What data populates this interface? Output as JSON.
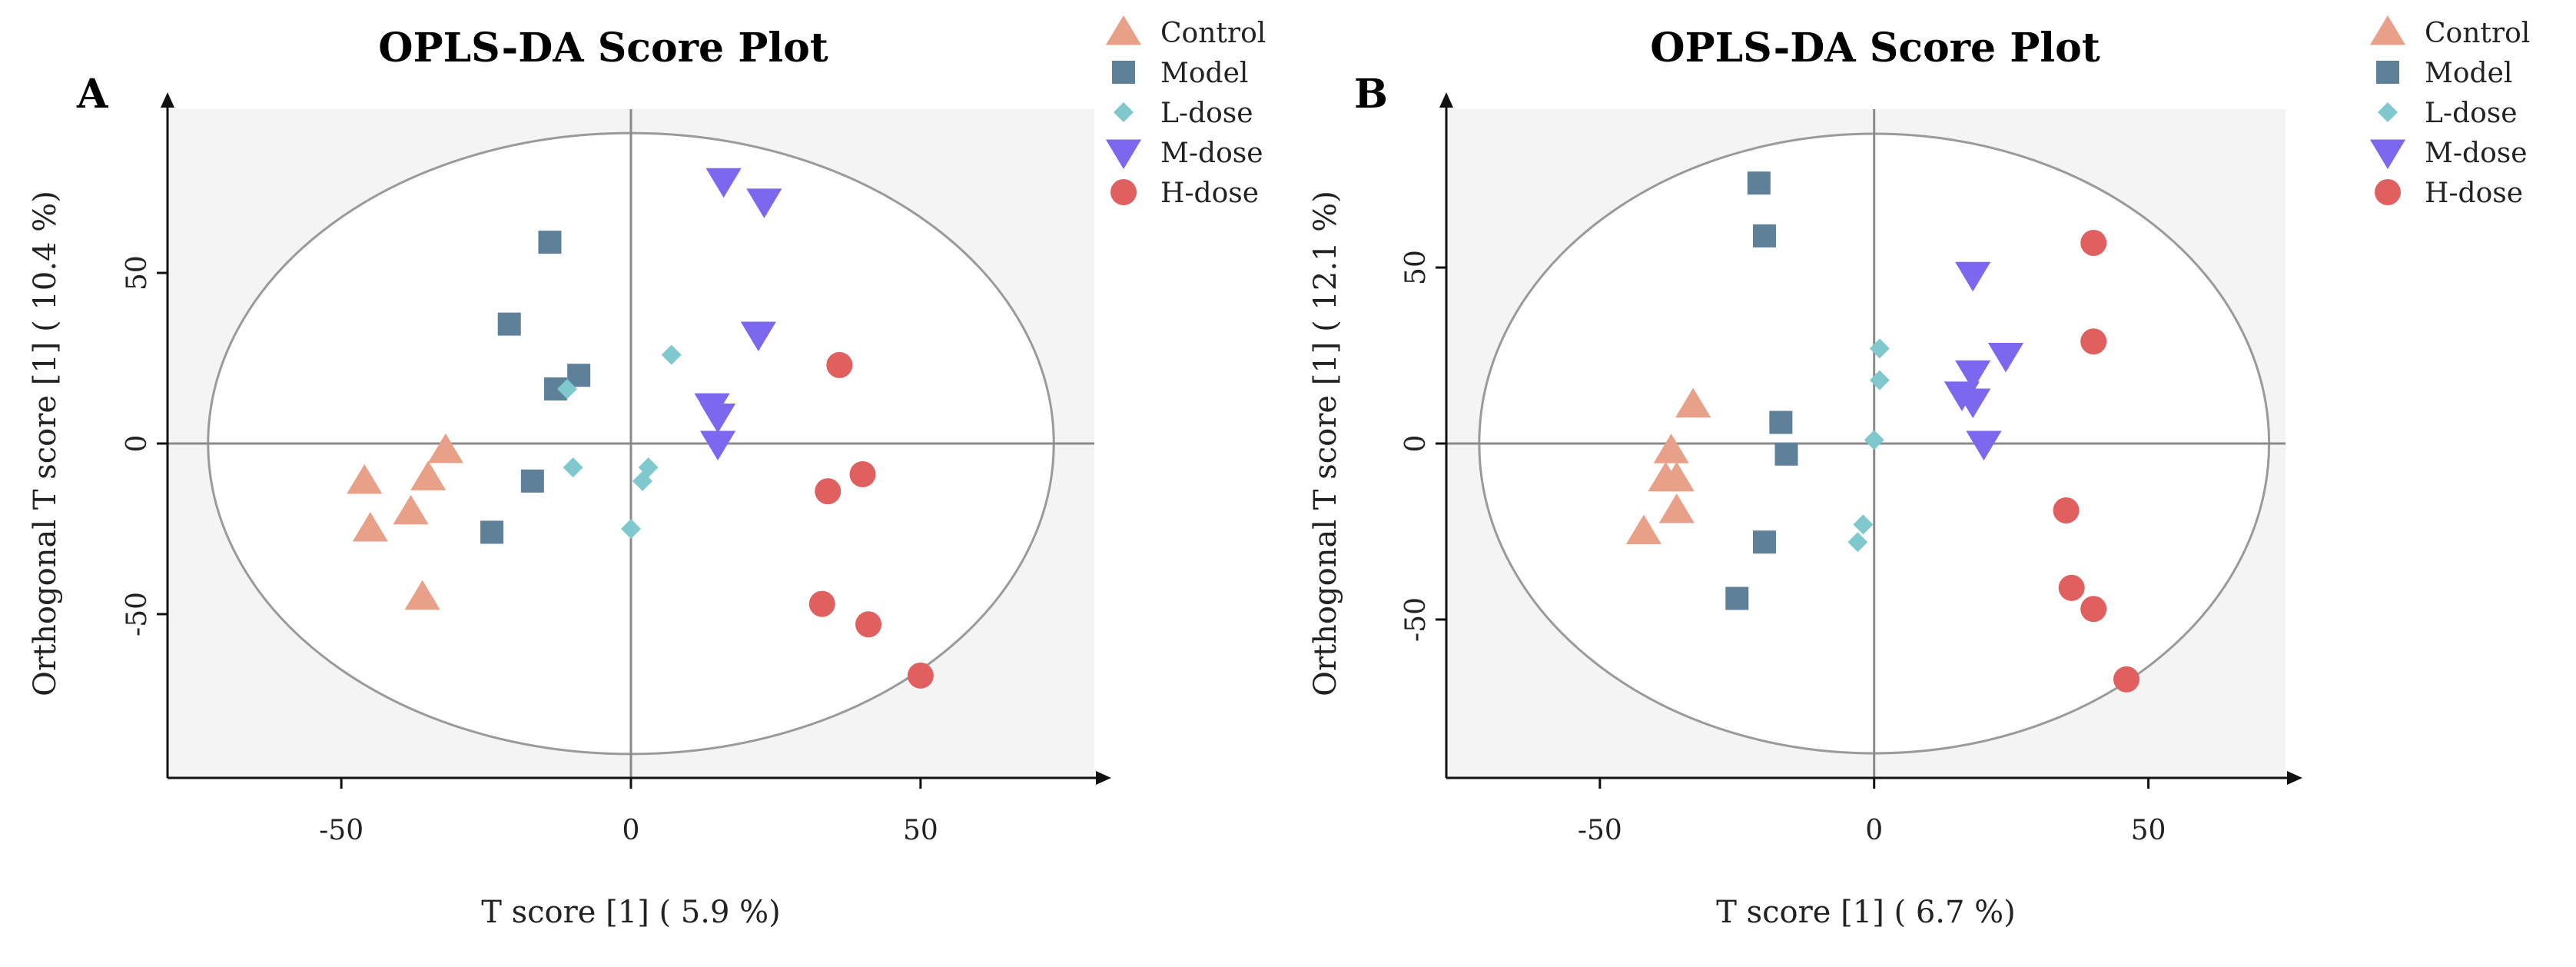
{
  "chart_data": [
    {
      "type": "scatter",
      "panel": "A",
      "title": "OPLS-DA Score Plot",
      "xlabel": "T score [1] ( 5.9 %)",
      "ylabel": "Orthogonal T score [1] ( 10.4 %)",
      "xlim": [
        -80,
        80
      ],
      "ylim": [
        -98,
        98
      ],
      "xticks": [
        -50,
        0,
        50
      ],
      "yticks": [
        -50,
        0,
        50
      ],
      "ellipse": {
        "cx": 0,
        "cy": 0,
        "rx": 73,
        "ry": 91
      },
      "legend": [
        "Control",
        "Model",
        "L-dose",
        "M-dose",
        "H-dose"
      ],
      "series": [
        {
          "name": "Control",
          "marker": "triangle-up",
          "color": "#E9A089",
          "points": [
            [
              -46,
              -11
            ],
            [
              -45,
              -25
            ],
            [
              -38,
              -20
            ],
            [
              -35,
              -10
            ],
            [
              -32,
              -2
            ],
            [
              -36,
              -45
            ]
          ]
        },
        {
          "name": "Model",
          "marker": "square",
          "color": "#5E8199",
          "points": [
            [
              -14,
              59
            ],
            [
              -21,
              35
            ],
            [
              -9,
              20
            ],
            [
              -13,
              16
            ],
            [
              -17,
              -11
            ],
            [
              -24,
              -26
            ]
          ]
        },
        {
          "name": "L-dose",
          "marker": "diamond",
          "color": "#7FC9CE",
          "points": [
            [
              7,
              26
            ],
            [
              -11,
              16
            ],
            [
              -10,
              -7
            ],
            [
              3,
              -7
            ],
            [
              2,
              -11
            ],
            [
              0,
              -25
            ]
          ]
        },
        {
          "name": "M-dose",
          "marker": "triangle-down",
          "color": "#7B68EE",
          "points": [
            [
              16,
              77
            ],
            [
              23,
              71
            ],
            [
              22,
              32
            ],
            [
              14,
              11
            ],
            [
              15,
              8
            ],
            [
              15,
              0
            ]
          ]
        },
        {
          "name": "H-dose",
          "marker": "circle",
          "color": "#E06060",
          "points": [
            [
              36,
              23
            ],
            [
              40,
              -9
            ],
            [
              34,
              -14
            ],
            [
              33,
              -47
            ],
            [
              41,
              -53
            ],
            [
              50,
              -68
            ]
          ]
        }
      ]
    },
    {
      "type": "scatter",
      "panel": "B",
      "title": "OPLS-DA Score Plot",
      "xlabel": "T score [1] ( 6.7 %)",
      "ylabel": "Orthogonal T score [1] ( 12.1 %)",
      "xlim": [
        -78,
        75
      ],
      "ylim": [
        -95,
        95
      ],
      "xticks": [
        -50,
        0,
        50
      ],
      "yticks": [
        -50,
        0,
        50
      ],
      "ellipse": {
        "cx": 0,
        "cy": 0,
        "rx": 72,
        "ry": 88
      },
      "legend": [
        "Control",
        "Model",
        "L-dose",
        "M-dose",
        "H-dose"
      ],
      "series": [
        {
          "name": "Control",
          "marker": "triangle-up",
          "color": "#E9A089",
          "points": [
            [
              -33,
              11
            ],
            [
              -37,
              -2
            ],
            [
              -38,
              -10
            ],
            [
              -36,
              -10
            ],
            [
              -36,
              -19
            ],
            [
              -42,
              -25
            ]
          ]
        },
        {
          "name": "Model",
          "marker": "square",
          "color": "#5E8199",
          "points": [
            [
              -21,
              74
            ],
            [
              -20,
              59
            ],
            [
              -17,
              6
            ],
            [
              -16,
              -3
            ],
            [
              -20,
              -28
            ],
            [
              -25,
              -44
            ]
          ]
        },
        {
          "name": "L-dose",
          "marker": "diamond",
          "color": "#7FC9CE",
          "points": [
            [
              1,
              27
            ],
            [
              1,
              18
            ],
            [
              0,
              1
            ],
            [
              -2,
              -23
            ],
            [
              -3,
              -28
            ]
          ]
        },
        {
          "name": "M-dose",
          "marker": "triangle-down",
          "color": "#7B68EE",
          "points": [
            [
              18,
              48
            ],
            [
              24,
              25
            ],
            [
              18,
              20
            ],
            [
              16,
              14
            ],
            [
              18,
              12
            ],
            [
              20,
              0
            ]
          ]
        },
        {
          "name": "H-dose",
          "marker": "circle",
          "color": "#E06060",
          "points": [
            [
              40,
              57
            ],
            [
              40,
              29
            ],
            [
              35,
              -19
            ],
            [
              36,
              -41
            ],
            [
              40,
              -47
            ],
            [
              46,
              -67
            ]
          ]
        }
      ]
    }
  ]
}
